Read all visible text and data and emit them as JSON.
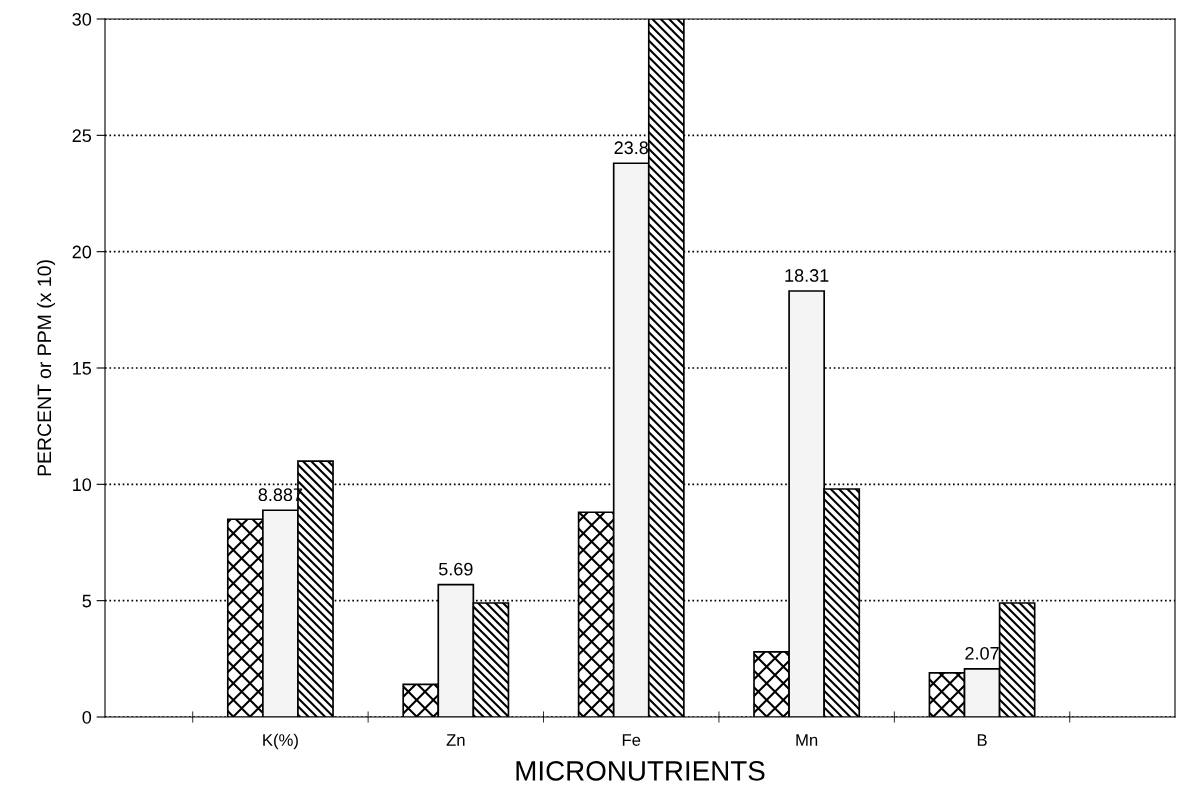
{
  "chart_data": {
    "type": "bar",
    "xlabel": "MICRONUTRIENTS",
    "ylabel": "PERCENT or PPM (x 10)",
    "categories": [
      "K(%)",
      "Zn",
      "Fe",
      "Mn",
      "B"
    ],
    "series": [
      {
        "color": "#000000",
        "values": [
          8.5,
          1.4,
          8.8,
          2.8,
          1.9
        ]
      },
      {
        "color": "#f4f4f4",
        "values": [
          8.887,
          5.69,
          23.8,
          18.31,
          2.07
        ],
        "value_labels": [
          "8.887",
          "5.69",
          "23.8",
          "18.31",
          "2.07"
        ]
      },
      {
        "color": "#000000",
        "values": [
          11.0,
          4.9,
          30,
          9.8,
          4.9
        ]
      }
    ],
    "ylim": [
      0,
      30
    ],
    "yticks": [
      0,
      5,
      10,
      15,
      20,
      25,
      30
    ],
    "grid": "y",
    "line_style": "dotted"
  }
}
